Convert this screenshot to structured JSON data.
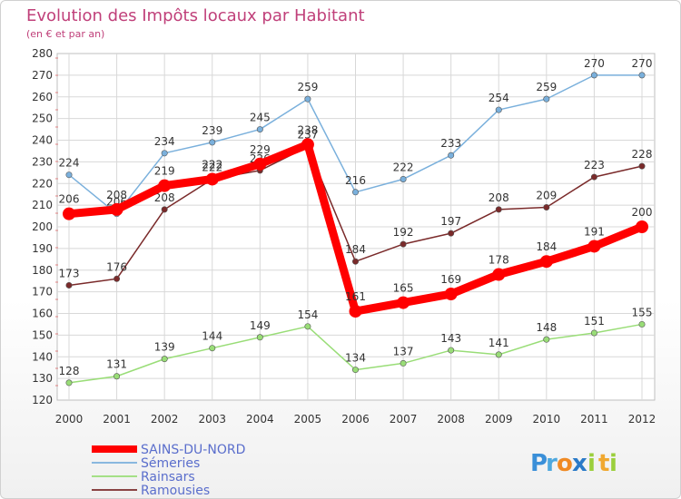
{
  "chart_data": {
    "type": "line",
    "title": "Evolution des Impôts locaux par Habitant",
    "subtitle": "(en € et par an)",
    "xlabel": "",
    "ylabel": "",
    "ylim": [
      120,
      280
    ],
    "y_ticks": [
      120,
      130,
      140,
      150,
      160,
      170,
      180,
      190,
      200,
      210,
      220,
      230,
      240,
      250,
      260,
      270,
      280
    ],
    "categories": [
      "2000",
      "2001",
      "2002",
      "2003",
      "2004",
      "2005",
      "2006",
      "2007",
      "2008",
      "2009",
      "2010",
      "2011",
      "2012"
    ],
    "grid": true,
    "legend_position": "bottom-left",
    "series": [
      {
        "name": "SAINS-DU-NORD",
        "color": "#ff0000",
        "values": [
          206,
          208,
          219,
          222,
          229,
          238,
          161,
          165,
          169,
          178,
          184,
          191,
          200
        ],
        "labels": [
          "206",
          "208",
          "219",
          "222",
          "229",
          "238",
          "161",
          "165",
          "169",
          "178",
          "184",
          "191",
          "200"
        ]
      },
      {
        "name": "Sémeries",
        "color": "#7ab0dc",
        "values": [
          224,
          206,
          234,
          239,
          245,
          259,
          216,
          222,
          233,
          254,
          259,
          270,
          270
        ],
        "labels": [
          "224",
          "206",
          "234",
          "239",
          "245",
          "259",
          "216",
          "222",
          "233",
          "254",
          "259",
          "270",
          "270"
        ]
      },
      {
        "name": "Rainsars",
        "color": "#99dd77",
        "values": [
          128,
          131,
          139,
          144,
          149,
          154,
          134,
          137,
          143,
          141,
          148,
          151,
          155
        ],
        "labels": [
          "128",
          "131",
          "139",
          "144",
          "149",
          "154",
          "134",
          "137",
          "143",
          "141",
          "148",
          "151",
          "155"
        ]
      },
      {
        "name": "Ramousies",
        "color": "#7a2a2a",
        "values": [
          173,
          176,
          208,
          222,
          226,
          237,
          184,
          192,
          197,
          208,
          209,
          223,
          228
        ],
        "labels": [
          "173",
          "176",
          "208",
          "222",
          "226",
          "237",
          "184",
          "192",
          "197",
          "208",
          "209",
          "223",
          "228"
        ]
      }
    ]
  },
  "brand": {
    "letters": [
      "P",
      "r",
      "o",
      "x",
      "i",
      "t",
      "i"
    ],
    "letter_colors": [
      "#3a8fd8",
      "#4ea8de",
      "#f08a24",
      "#2a7ac8",
      "#9bcf3c",
      "#f0a830",
      "#9bcf3c"
    ]
  }
}
